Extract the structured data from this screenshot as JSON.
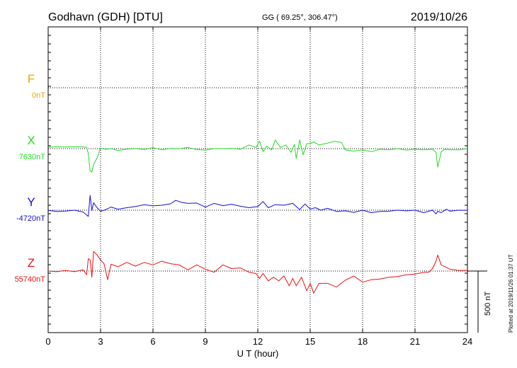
{
  "header": {
    "station": "Godhavn (GDH)  [DTU]",
    "coords": "GG ( 69.25°, 306.47°)",
    "date": "2019/10/26"
  },
  "side_note": "Plotted at 2019/11/26 01:37 UT",
  "scale_label": "500 nT",
  "colors": {
    "F": "#f5a300",
    "X": "#22dd22",
    "Y": "#1010dd",
    "Z": "#ee1111",
    "grid": "#000000"
  },
  "chart_data": {
    "type": "line",
    "xlabel": "U T (hour)",
    "x_ticks": [
      "0",
      "3",
      "6",
      "9",
      "12",
      "15",
      "18",
      "21",
      "24"
    ],
    "xlim": [
      0,
      24
    ],
    "grid": true,
    "series": [
      {
        "name": "F",
        "baseline_label": "0nT",
        "baseline": 0,
        "x": [],
        "values": []
      },
      {
        "name": "X",
        "baseline_label": "7630nT",
        "baseline": 7630,
        "x": [
          0,
          0.5,
          1,
          1.5,
          2,
          2.2,
          2.3,
          2.4,
          2.5,
          2.6,
          2.8,
          3,
          3.3,
          3.6,
          4,
          4.5,
          5,
          5.5,
          6,
          6.5,
          7,
          7.5,
          8,
          8.5,
          9,
          9.5,
          10,
          10.5,
          11,
          11.5,
          11.9,
          12.1,
          12.3,
          12.5,
          12.8,
          13,
          13.3,
          13.6,
          13.9,
          14.1,
          14.2,
          14.4,
          14.6,
          14.8,
          15,
          15.2,
          15.5,
          16,
          16.4,
          16.8,
          17,
          17.5,
          18,
          18.5,
          19,
          19.5,
          20,
          20.5,
          21,
          21.5,
          22,
          22.2,
          22.3,
          22.5,
          22.7,
          23,
          23.5,
          24
        ],
        "values": [
          7640,
          7645,
          7643,
          7645,
          7644,
          7640,
          7590,
          7450,
          7440,
          7500,
          7555,
          7630,
          7625,
          7630,
          7615,
          7625,
          7630,
          7622,
          7638,
          7620,
          7632,
          7628,
          7640,
          7622,
          7618,
          7630,
          7630,
          7632,
          7625,
          7660,
          7640,
          7690,
          7605,
          7650,
          7620,
          7700,
          7640,
          7660,
          7600,
          7665,
          7550,
          7700,
          7580,
          7670,
          7670,
          7685,
          7660,
          7675,
          7690,
          7680,
          7620,
          7610,
          7620,
          7605,
          7625,
          7620,
          7630,
          7618,
          7625,
          7620,
          7625,
          7600,
          7480,
          7605,
          7625,
          7620,
          7620,
          7630
        ]
      },
      {
        "name": "Y",
        "baseline_label": "-4720nT",
        "baseline": -4720,
        "x": [
          0,
          0.5,
          1,
          1.5,
          2,
          2.3,
          2.4,
          2.5,
          2.6,
          2.8,
          3,
          3.3,
          3.6,
          4,
          4.5,
          5,
          5.5,
          6,
          6.5,
          7,
          7.3,
          7.6,
          8,
          8.5,
          9,
          9.5,
          10,
          10.5,
          11,
          11.5,
          12,
          12.3,
          12.6,
          13,
          13.5,
          14,
          14.4,
          14.7,
          15,
          15.3,
          15.6,
          16,
          16.5,
          17,
          17.5,
          18,
          18.5,
          19,
          19.5,
          20,
          20.5,
          21,
          21.5,
          22,
          22.2,
          22.3,
          22.5,
          22.8,
          23,
          23.5,
          24
        ],
        "values": [
          -4722,
          -4730,
          -4727,
          -4720,
          -4735,
          -4770,
          -4600,
          -4720,
          -4660,
          -4700,
          -4730,
          -4715,
          -4695,
          -4712,
          -4700,
          -4690,
          -4675,
          -4685,
          -4680,
          -4668,
          -4640,
          -4655,
          -4665,
          -4662,
          -4695,
          -4665,
          -4683,
          -4672,
          -4688,
          -4700,
          -4690,
          -4650,
          -4700,
          -4675,
          -4680,
          -4665,
          -4715,
          -4670,
          -4710,
          -4700,
          -4720,
          -4705,
          -4730,
          -4725,
          -4738,
          -4720,
          -4740,
          -4730,
          -4728,
          -4720,
          -4725,
          -4720,
          -4740,
          -4720,
          -4750,
          -4730,
          -4740,
          -4712,
          -4728,
          -4720,
          -4722
        ]
      },
      {
        "name": "Z",
        "baseline_label": "55740nT",
        "baseline": 55740,
        "x": [
          0,
          0.5,
          1,
          1.5,
          2,
          2.2,
          2.3,
          2.4,
          2.5,
          2.6,
          2.8,
          3,
          3.2,
          3.4,
          3.6,
          4,
          4.5,
          5,
          5.5,
          6,
          6.5,
          7,
          7.5,
          7.8,
          8,
          8.5,
          9,
          9.5,
          10,
          10.5,
          11,
          11.5,
          11.9,
          12.1,
          12.3,
          12.6,
          12.9,
          13.2,
          13.5,
          13.8,
          14,
          14.2,
          14.5,
          14.8,
          15,
          15.2,
          15.5,
          16,
          16.5,
          17,
          17.5,
          18,
          18.5,
          19,
          19.5,
          20,
          20.5,
          21,
          21.5,
          21.8,
          22,
          22.2,
          22.3,
          22.5,
          22.8,
          23,
          23.5,
          24
        ],
        "values": [
          55740,
          55735,
          55745,
          55735,
          55750,
          55710,
          55840,
          55830,
          55690,
          55900,
          55870,
          55830,
          55800,
          55670,
          55795,
          55775,
          55810,
          55780,
          55810,
          55790,
          55820,
          55800,
          55790,
          55765,
          55750,
          55790,
          55755,
          55730,
          55790,
          55760,
          55765,
          55730,
          55720,
          55680,
          55720,
          55660,
          55690,
          55660,
          55700,
          55620,
          55680,
          55620,
          55690,
          55580,
          55640,
          55560,
          55640,
          55640,
          55610,
          55665,
          55700,
          55650,
          55670,
          55675,
          55690,
          55695,
          55710,
          55715,
          55730,
          55730,
          55760,
          55820,
          55870,
          55790,
          55770,
          55755,
          55745,
          55745
        ]
      }
    ]
  }
}
